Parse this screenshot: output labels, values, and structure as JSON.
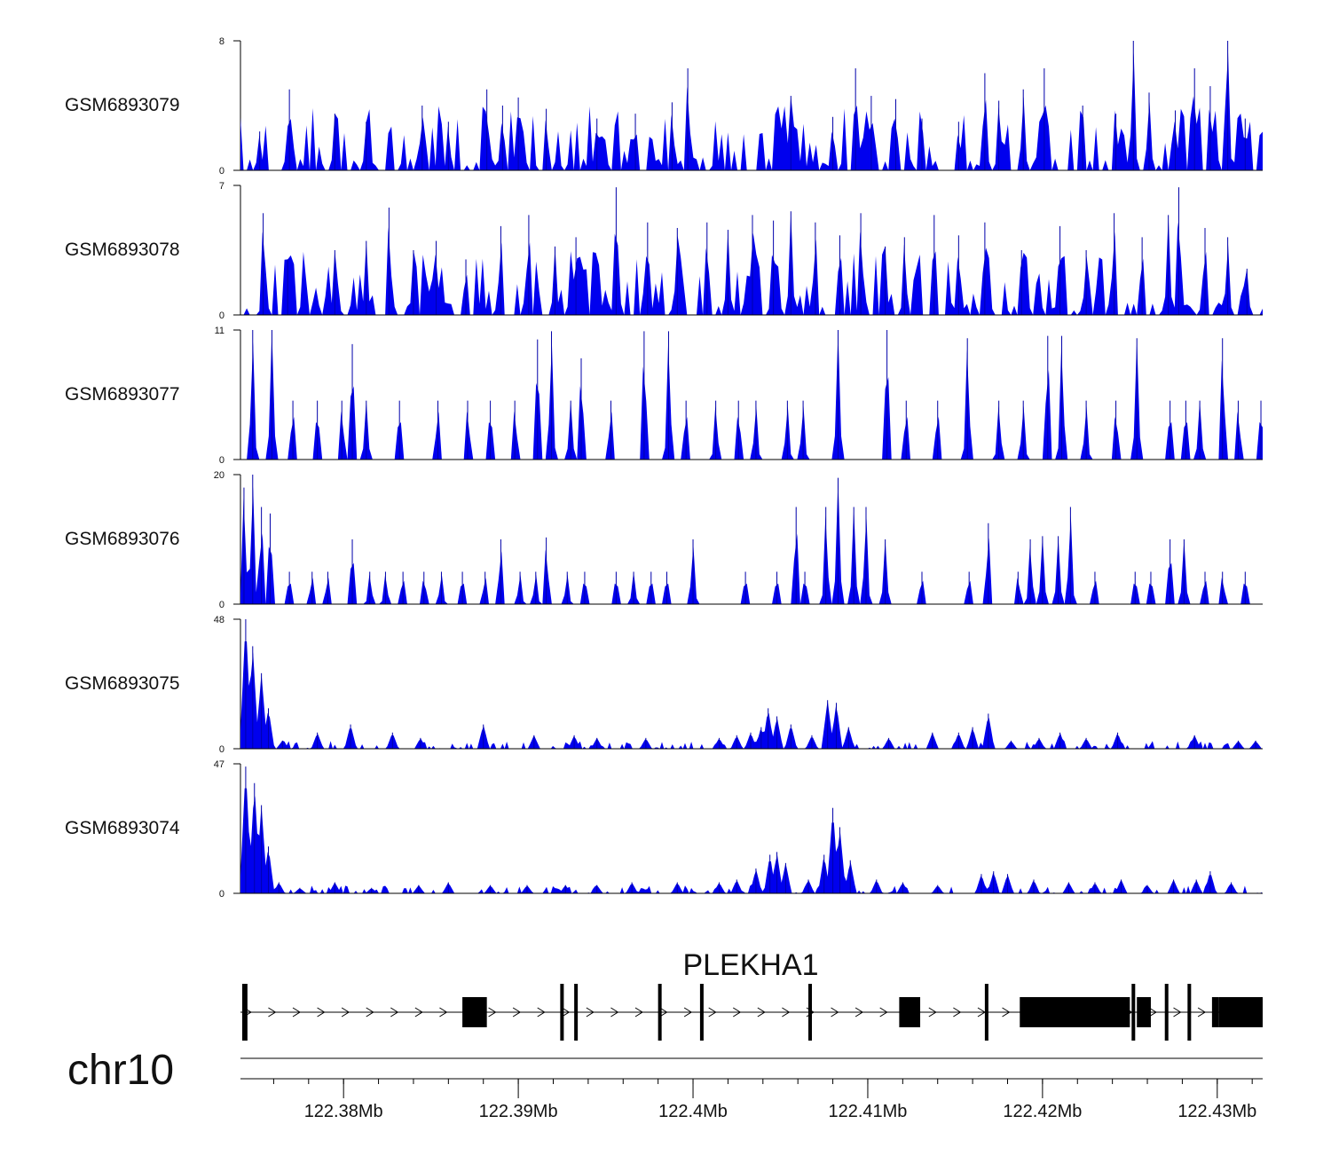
{
  "chart_data": {
    "type": "area",
    "title": "",
    "chromosome": "chr10",
    "gene": {
      "name": "PLEKHA1",
      "strand": "+",
      "exons_kb": [
        [
          122374.2,
          122374.5
        ],
        [
          122386.8,
          122388.2
        ],
        [
          122392.4,
          122392.5
        ],
        [
          122393.2,
          122393.4
        ],
        [
          122398.0,
          122398.1
        ],
        [
          122400.4,
          122400.5
        ],
        [
          122406.6,
          122406.8
        ],
        [
          122411.8,
          122413.0
        ],
        [
          122416.7,
          122416.9
        ],
        [
          122418.7,
          122425.0
        ],
        [
          122425.1,
          122425.3
        ],
        [
          122425.4,
          122426.2
        ],
        [
          122427.0,
          122427.1
        ],
        [
          122428.3,
          122428.4
        ],
        [
          122429.7,
          122430.1
        ],
        [
          122430.1,
          122432.6
        ]
      ]
    },
    "x_axis": {
      "unit": "Mb",
      "range_kb": [
        122374.1,
        122432.6
      ],
      "labels": [
        "122.38Mb",
        "122.39Mb",
        "122.4Mb",
        "122.41Mb",
        "122.42Mb",
        "122.43Mb"
      ],
      "label_positions_kb": [
        122380,
        122390,
        122400,
        122410,
        122420,
        122430
      ],
      "minor_tick_step_kb": 2
    },
    "series": [
      {
        "name": "GSM6893079",
        "ymax": 8,
        "ymin": 0,
        "color": "#0000ee",
        "peaks": [
          [
            122375.2,
            2.4
          ],
          [
            122376.9,
            5
          ],
          [
            122379.5,
            3.5
          ],
          [
            122381.3,
            3
          ],
          [
            122384.5,
            4
          ],
          [
            122386.0,
            3
          ],
          [
            122388.2,
            5
          ],
          [
            122389.1,
            4
          ],
          [
            122390.0,
            4.5
          ],
          [
            122391.6,
            3.8
          ],
          [
            122394.5,
            3.2
          ],
          [
            122396.7,
            3.5
          ],
          [
            122398.8,
            4.2
          ],
          [
            122399.7,
            6.3
          ],
          [
            122405.6,
            4.6
          ],
          [
            122408.0,
            3.3
          ],
          [
            122409.3,
            6.3
          ],
          [
            122410.2,
            4.6
          ],
          [
            122411.6,
            4.4
          ],
          [
            122413.1,
            3.2
          ],
          [
            122415.2,
            3
          ],
          [
            122416.7,
            6
          ],
          [
            122417.5,
            4.3
          ],
          [
            122418.9,
            5
          ],
          [
            122420.1,
            6.3
          ],
          [
            122422.3,
            4
          ],
          [
            122424.2,
            3.5
          ],
          [
            122425.2,
            8
          ],
          [
            122426.1,
            4.8
          ],
          [
            122427.6,
            3.7
          ],
          [
            122428.7,
            6.3
          ],
          [
            122429.6,
            5.2
          ],
          [
            122430.6,
            8
          ],
          [
            122431.6,
            3.2
          ]
        ],
        "floor": 1.2
      },
      {
        "name": "GSM6893078",
        "ymax": 7,
        "ymin": 0,
        "color": "#0000ee",
        "peaks": [
          [
            122375.4,
            5.5
          ],
          [
            122376.8,
            3
          ],
          [
            122379.5,
            3.5
          ],
          [
            122381.3,
            4
          ],
          [
            122382.6,
            5.8
          ],
          [
            122384.0,
            3.5
          ],
          [
            122385.3,
            4
          ],
          [
            122387.0,
            3
          ],
          [
            122389.0,
            4.8
          ],
          [
            122390.6,
            5.4
          ],
          [
            122392.1,
            3.7
          ],
          [
            122393.3,
            4.2
          ],
          [
            122395.6,
            6.9
          ],
          [
            122397.4,
            5
          ],
          [
            122399.1,
            4.7
          ],
          [
            122400.8,
            5
          ],
          [
            122402.0,
            4.6
          ],
          [
            122403.4,
            5.4
          ],
          [
            122404.6,
            5.1
          ],
          [
            122405.6,
            5.6
          ],
          [
            122407.0,
            5
          ],
          [
            122408.4,
            4.3
          ],
          [
            122409.6,
            5.5
          ],
          [
            122411.0,
            3.7
          ],
          [
            122412.1,
            4.2
          ],
          [
            122413.8,
            5.4
          ],
          [
            122415.2,
            4.3
          ],
          [
            122416.7,
            5
          ],
          [
            122418.8,
            3.5
          ],
          [
            122421.0,
            4.8
          ],
          [
            122422.5,
            3.5
          ],
          [
            122424.1,
            5.5
          ],
          [
            122425.7,
            4.2
          ],
          [
            122427.2,
            5.4
          ],
          [
            122427.8,
            6.9
          ],
          [
            122429.3,
            4.7
          ],
          [
            122430.6,
            4.2
          ],
          [
            122431.7,
            2.5
          ]
        ],
        "floor": 1.0
      },
      {
        "name": "GSM6893077",
        "ymax": 11,
        "ymin": 0,
        "color": "#0000ee",
        "peaks": [
          [
            122374.8,
            11
          ],
          [
            122375.9,
            11
          ],
          [
            122377.1,
            5
          ],
          [
            122378.5,
            5
          ],
          [
            122379.9,
            5
          ],
          [
            122380.5,
            9.8
          ],
          [
            122381.3,
            5
          ],
          [
            122383.2,
            5
          ],
          [
            122385.4,
            5
          ],
          [
            122387.1,
            5
          ],
          [
            122388.4,
            5
          ],
          [
            122389.8,
            5
          ],
          [
            122391.1,
            10.2
          ],
          [
            122391.9,
            10.9
          ],
          [
            122393.0,
            5
          ],
          [
            122393.6,
            8.6
          ],
          [
            122395.3,
            5
          ],
          [
            122397.2,
            10.9
          ],
          [
            122398.6,
            10.9
          ],
          [
            122399.6,
            5
          ],
          [
            122401.3,
            5
          ],
          [
            122402.6,
            5
          ],
          [
            122403.6,
            5
          ],
          [
            122405.4,
            5
          ],
          [
            122406.3,
            5
          ],
          [
            122408.3,
            11
          ],
          [
            122411.1,
            11
          ],
          [
            122412.2,
            5
          ],
          [
            122414.0,
            5
          ],
          [
            122415.7,
            10.3
          ],
          [
            122417.5,
            5
          ],
          [
            122418.9,
            5
          ],
          [
            122420.3,
            10.5
          ],
          [
            122421.1,
            10.5
          ],
          [
            122422.5,
            5
          ],
          [
            122424.2,
            5
          ],
          [
            122425.4,
            10.3
          ],
          [
            122427.3,
            5
          ],
          [
            122428.2,
            5
          ],
          [
            122429.0,
            5
          ],
          [
            122430.3,
            10.3
          ],
          [
            122431.2,
            5
          ],
          [
            122432.5,
            5
          ]
        ],
        "floor": 0
      },
      {
        "name": "GSM6893076",
        "ymax": 20,
        "ymin": 0,
        "color": "#0000ee",
        "peaks": [
          [
            122374.3,
            18
          ],
          [
            122374.8,
            20
          ],
          [
            122375.3,
            15
          ],
          [
            122375.8,
            14
          ],
          [
            122376.9,
            5
          ],
          [
            122378.2,
            5
          ],
          [
            122379.1,
            5
          ],
          [
            122380.5,
            10
          ],
          [
            122381.5,
            5
          ],
          [
            122382.4,
            5
          ],
          [
            122383.4,
            5
          ],
          [
            122384.6,
            5
          ],
          [
            122385.6,
            5
          ],
          [
            122386.8,
            5
          ],
          [
            122388.1,
            5
          ],
          [
            122389.0,
            10
          ],
          [
            122390.1,
            5
          ],
          [
            122391.0,
            5
          ],
          [
            122391.6,
            10.3
          ],
          [
            122392.8,
            5
          ],
          [
            122393.8,
            5
          ],
          [
            122395.6,
            5
          ],
          [
            122396.6,
            5
          ],
          [
            122397.6,
            5
          ],
          [
            122398.5,
            5
          ],
          [
            122400.0,
            10
          ],
          [
            122403.0,
            5
          ],
          [
            122404.8,
            5
          ],
          [
            122405.9,
            15
          ],
          [
            122406.4,
            5
          ],
          [
            122407.6,
            15
          ],
          [
            122408.3,
            19.5
          ],
          [
            122409.2,
            15
          ],
          [
            122409.9,
            15
          ],
          [
            122411.0,
            10
          ],
          [
            122413.1,
            5
          ],
          [
            122415.8,
            5
          ],
          [
            122416.9,
            12.5
          ],
          [
            122418.6,
            5
          ],
          [
            122419.3,
            10
          ],
          [
            122420.0,
            10.5
          ],
          [
            122420.9,
            10.5
          ],
          [
            122421.6,
            15
          ],
          [
            122423.0,
            5
          ],
          [
            122425.3,
            5
          ],
          [
            122426.2,
            5
          ],
          [
            122427.3,
            10
          ],
          [
            122428.1,
            10
          ],
          [
            122429.3,
            5
          ],
          [
            122430.3,
            5
          ],
          [
            122431.6,
            5
          ]
        ],
        "floor": 0
      },
      {
        "name": "GSM6893075",
        "ymax": 48,
        "ymin": 0,
        "color": "#0000ee",
        "peaks": [
          [
            122374.4,
            48
          ],
          [
            122374.8,
            38
          ],
          [
            122375.3,
            28
          ],
          [
            122375.7,
            15
          ],
          [
            122376.5,
            3
          ],
          [
            122378.5,
            6
          ],
          [
            122380.4,
            9
          ],
          [
            122382.8,
            6
          ],
          [
            122384.4,
            4
          ],
          [
            122388.0,
            9
          ],
          [
            122390.9,
            5
          ],
          [
            122393.2,
            5
          ],
          [
            122394.5,
            4
          ],
          [
            122397.3,
            4
          ],
          [
            122401.5,
            4
          ],
          [
            122402.5,
            5
          ],
          [
            122403.3,
            6
          ],
          [
            122403.9,
            8
          ],
          [
            122404.3,
            15
          ],
          [
            122404.8,
            12
          ],
          [
            122405.6,
            9
          ],
          [
            122406.8,
            5
          ],
          [
            122407.7,
            18
          ],
          [
            122408.2,
            17
          ],
          [
            122408.9,
            8
          ],
          [
            122411.2,
            4
          ],
          [
            122413.7,
            6
          ],
          [
            122415.2,
            6
          ],
          [
            122416.0,
            8
          ],
          [
            122416.9,
            13
          ],
          [
            122418.2,
            3
          ],
          [
            122419.8,
            4
          ],
          [
            122421.0,
            6
          ],
          [
            122422.5,
            4
          ],
          [
            122424.3,
            6
          ],
          [
            122428.7,
            5
          ],
          [
            122431.2,
            3
          ],
          [
            122432.2,
            3
          ]
        ],
        "floor": 0
      },
      {
        "name": "GSM6893074",
        "ymax": 47,
        "ymin": 0,
        "color": "#0000ee",
        "peaks": [
          [
            122374.4,
            46
          ],
          [
            122374.9,
            40
          ],
          [
            122375.3,
            32
          ],
          [
            122375.7,
            17
          ],
          [
            122376.3,
            4
          ],
          [
            122377.5,
            2
          ],
          [
            122379.5,
            4
          ],
          [
            122381.6,
            2
          ],
          [
            122384.3,
            3
          ],
          [
            122386.0,
            4
          ],
          [
            122388.4,
            3
          ],
          [
            122390.5,
            3
          ],
          [
            122392.7,
            3
          ],
          [
            122394.5,
            3
          ],
          [
            122396.5,
            4
          ],
          [
            122399.1,
            4
          ],
          [
            122401.5,
            4
          ],
          [
            122402.5,
            5
          ],
          [
            122403.6,
            9
          ],
          [
            122404.4,
            14
          ],
          [
            122404.8,
            15
          ],
          [
            122405.3,
            11
          ],
          [
            122406.6,
            5
          ],
          [
            122407.5,
            14
          ],
          [
            122408.0,
            31
          ],
          [
            122408.4,
            24
          ],
          [
            122409.0,
            12
          ],
          [
            122410.5,
            5
          ],
          [
            122412.0,
            4
          ],
          [
            122414.0,
            3
          ],
          [
            122416.5,
            7
          ],
          [
            122417.2,
            8
          ],
          [
            122418.0,
            7
          ],
          [
            122419.5,
            5
          ],
          [
            122421.5,
            4
          ],
          [
            122423.0,
            4
          ],
          [
            122424.5,
            5
          ],
          [
            122426.0,
            3
          ],
          [
            122427.5,
            5
          ],
          [
            122428.8,
            5
          ],
          [
            122429.6,
            8
          ],
          [
            122430.8,
            4
          ]
        ],
        "floor": 0
      }
    ]
  }
}
